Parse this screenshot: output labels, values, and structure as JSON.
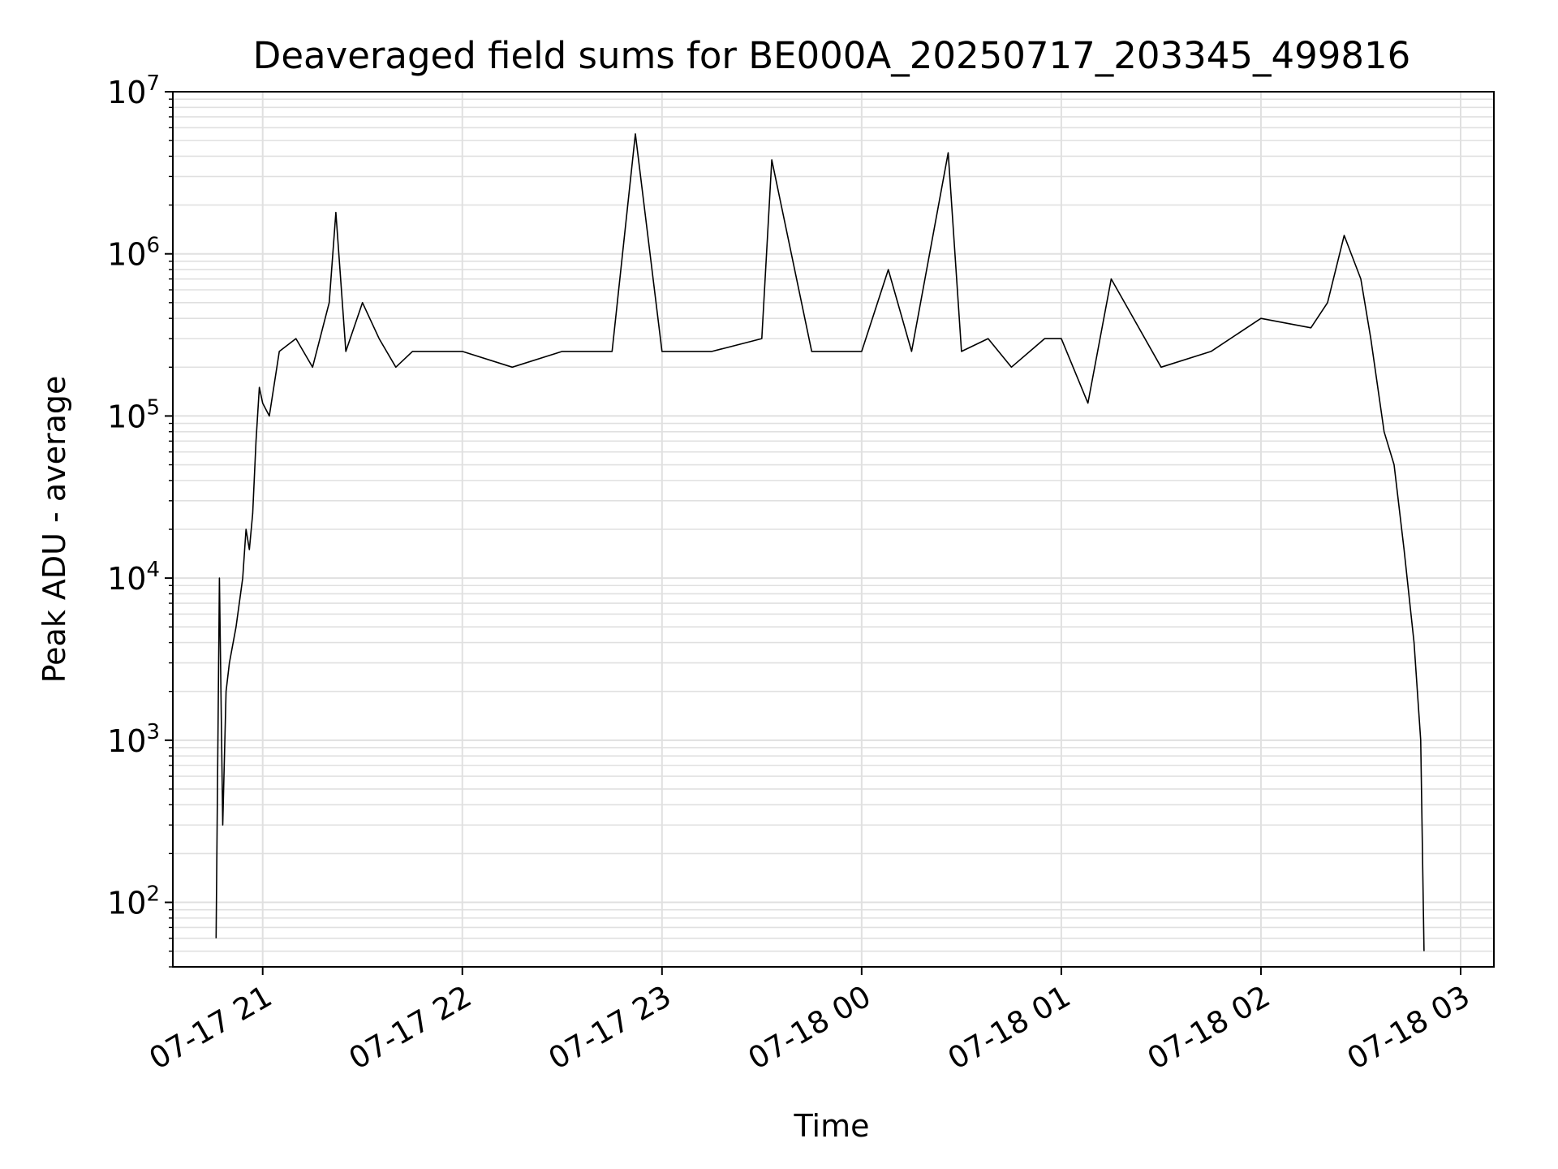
{
  "chart_data": {
    "type": "line",
    "title": "Deaveraged field sums for BE000A_20250717_203345_499816",
    "xlabel": "Time",
    "ylabel": "Peak ADU - average",
    "yscale": "log",
    "ylim": [
      40,
      10000000
    ],
    "xlim": [
      "2025-07-17 20:33",
      "2025-07-18 03:10"
    ],
    "grid": true,
    "line_color": "#000000",
    "grid_color": "#e0e0e0",
    "x_ticks": [
      {
        "value": "2025-07-17 21:00",
        "label": "07-17 21"
      },
      {
        "value": "2025-07-17 22:00",
        "label": "07-17 22"
      },
      {
        "value": "2025-07-17 23:00",
        "label": "07-17 23"
      },
      {
        "value": "2025-07-18 00:00",
        "label": "07-18 00"
      },
      {
        "value": "2025-07-18 01:00",
        "label": "07-18 01"
      },
      {
        "value": "2025-07-18 02:00",
        "label": "07-18 02"
      },
      {
        "value": "2025-07-18 03:00",
        "label": "07-18 03"
      }
    ],
    "y_ticks": [
      {
        "value": 100,
        "base": "10",
        "exp": "2"
      },
      {
        "value": 1000,
        "base": "10",
        "exp": "3"
      },
      {
        "value": 10000,
        "base": "10",
        "exp": "4"
      },
      {
        "value": 100000,
        "base": "10",
        "exp": "5"
      },
      {
        "value": 1000000,
        "base": "10",
        "exp": "6"
      },
      {
        "value": 10000000,
        "base": "10",
        "exp": "7"
      }
    ],
    "series": [
      {
        "x": [
          "2025-07-17 20:46",
          "2025-07-17 20:47",
          "2025-07-17 20:48",
          "2025-07-17 20:49",
          "2025-07-17 20:50",
          "2025-07-17 20:52",
          "2025-07-17 20:54",
          "2025-07-17 20:55",
          "2025-07-17 20:56",
          "2025-07-17 20:57",
          "2025-07-17 20:58",
          "2025-07-17 20:59",
          "2025-07-17 21:00",
          "2025-07-17 21:02",
          "2025-07-17 21:05",
          "2025-07-17 21:10",
          "2025-07-17 21:15",
          "2025-07-17 21:20",
          "2025-07-17 21:22",
          "2025-07-17 21:25",
          "2025-07-17 21:30",
          "2025-07-17 21:35",
          "2025-07-17 21:40",
          "2025-07-17 21:45",
          "2025-07-17 22:00",
          "2025-07-17 22:15",
          "2025-07-17 22:30",
          "2025-07-17 22:45",
          "2025-07-17 22:52",
          "2025-07-17 23:00",
          "2025-07-17 23:15",
          "2025-07-17 23:30",
          "2025-07-17 23:33",
          "2025-07-17 23:45",
          "2025-07-18 00:00",
          "2025-07-18 00:08",
          "2025-07-18 00:15",
          "2025-07-18 00:26",
          "2025-07-18 00:30",
          "2025-07-18 00:38",
          "2025-07-18 00:45",
          "2025-07-18 00:55",
          "2025-07-18 01:00",
          "2025-07-18 01:08",
          "2025-07-18 01:15",
          "2025-07-18 01:30",
          "2025-07-18 01:45",
          "2025-07-18 02:00",
          "2025-07-18 02:15",
          "2025-07-18 02:20",
          "2025-07-18 02:25",
          "2025-07-18 02:30",
          "2025-07-18 02:33",
          "2025-07-18 02:37",
          "2025-07-18 02:40",
          "2025-07-18 02:43",
          "2025-07-18 02:46",
          "2025-07-18 02:48",
          "2025-07-18 02:49"
        ],
        "y": [
          60,
          10000,
          300,
          2000,
          3000,
          5000,
          10000,
          20000,
          15000,
          25000,
          70000,
          150000,
          120000,
          100000,
          250000,
          300000,
          200000,
          500000,
          1800000,
          250000,
          500000,
          300000,
          200000,
          250000,
          250000,
          200000,
          250000,
          250000,
          5500000,
          250000,
          250000,
          300000,
          3800000,
          250000,
          250000,
          800000,
          250000,
          4200000,
          250000,
          300000,
          200000,
          300000,
          300000,
          120000,
          700000,
          200000,
          250000,
          400000,
          350000,
          500000,
          1300000,
          700000,
          300000,
          80000,
          50000,
          15000,
          4000,
          1000,
          50
        ]
      }
    ]
  }
}
